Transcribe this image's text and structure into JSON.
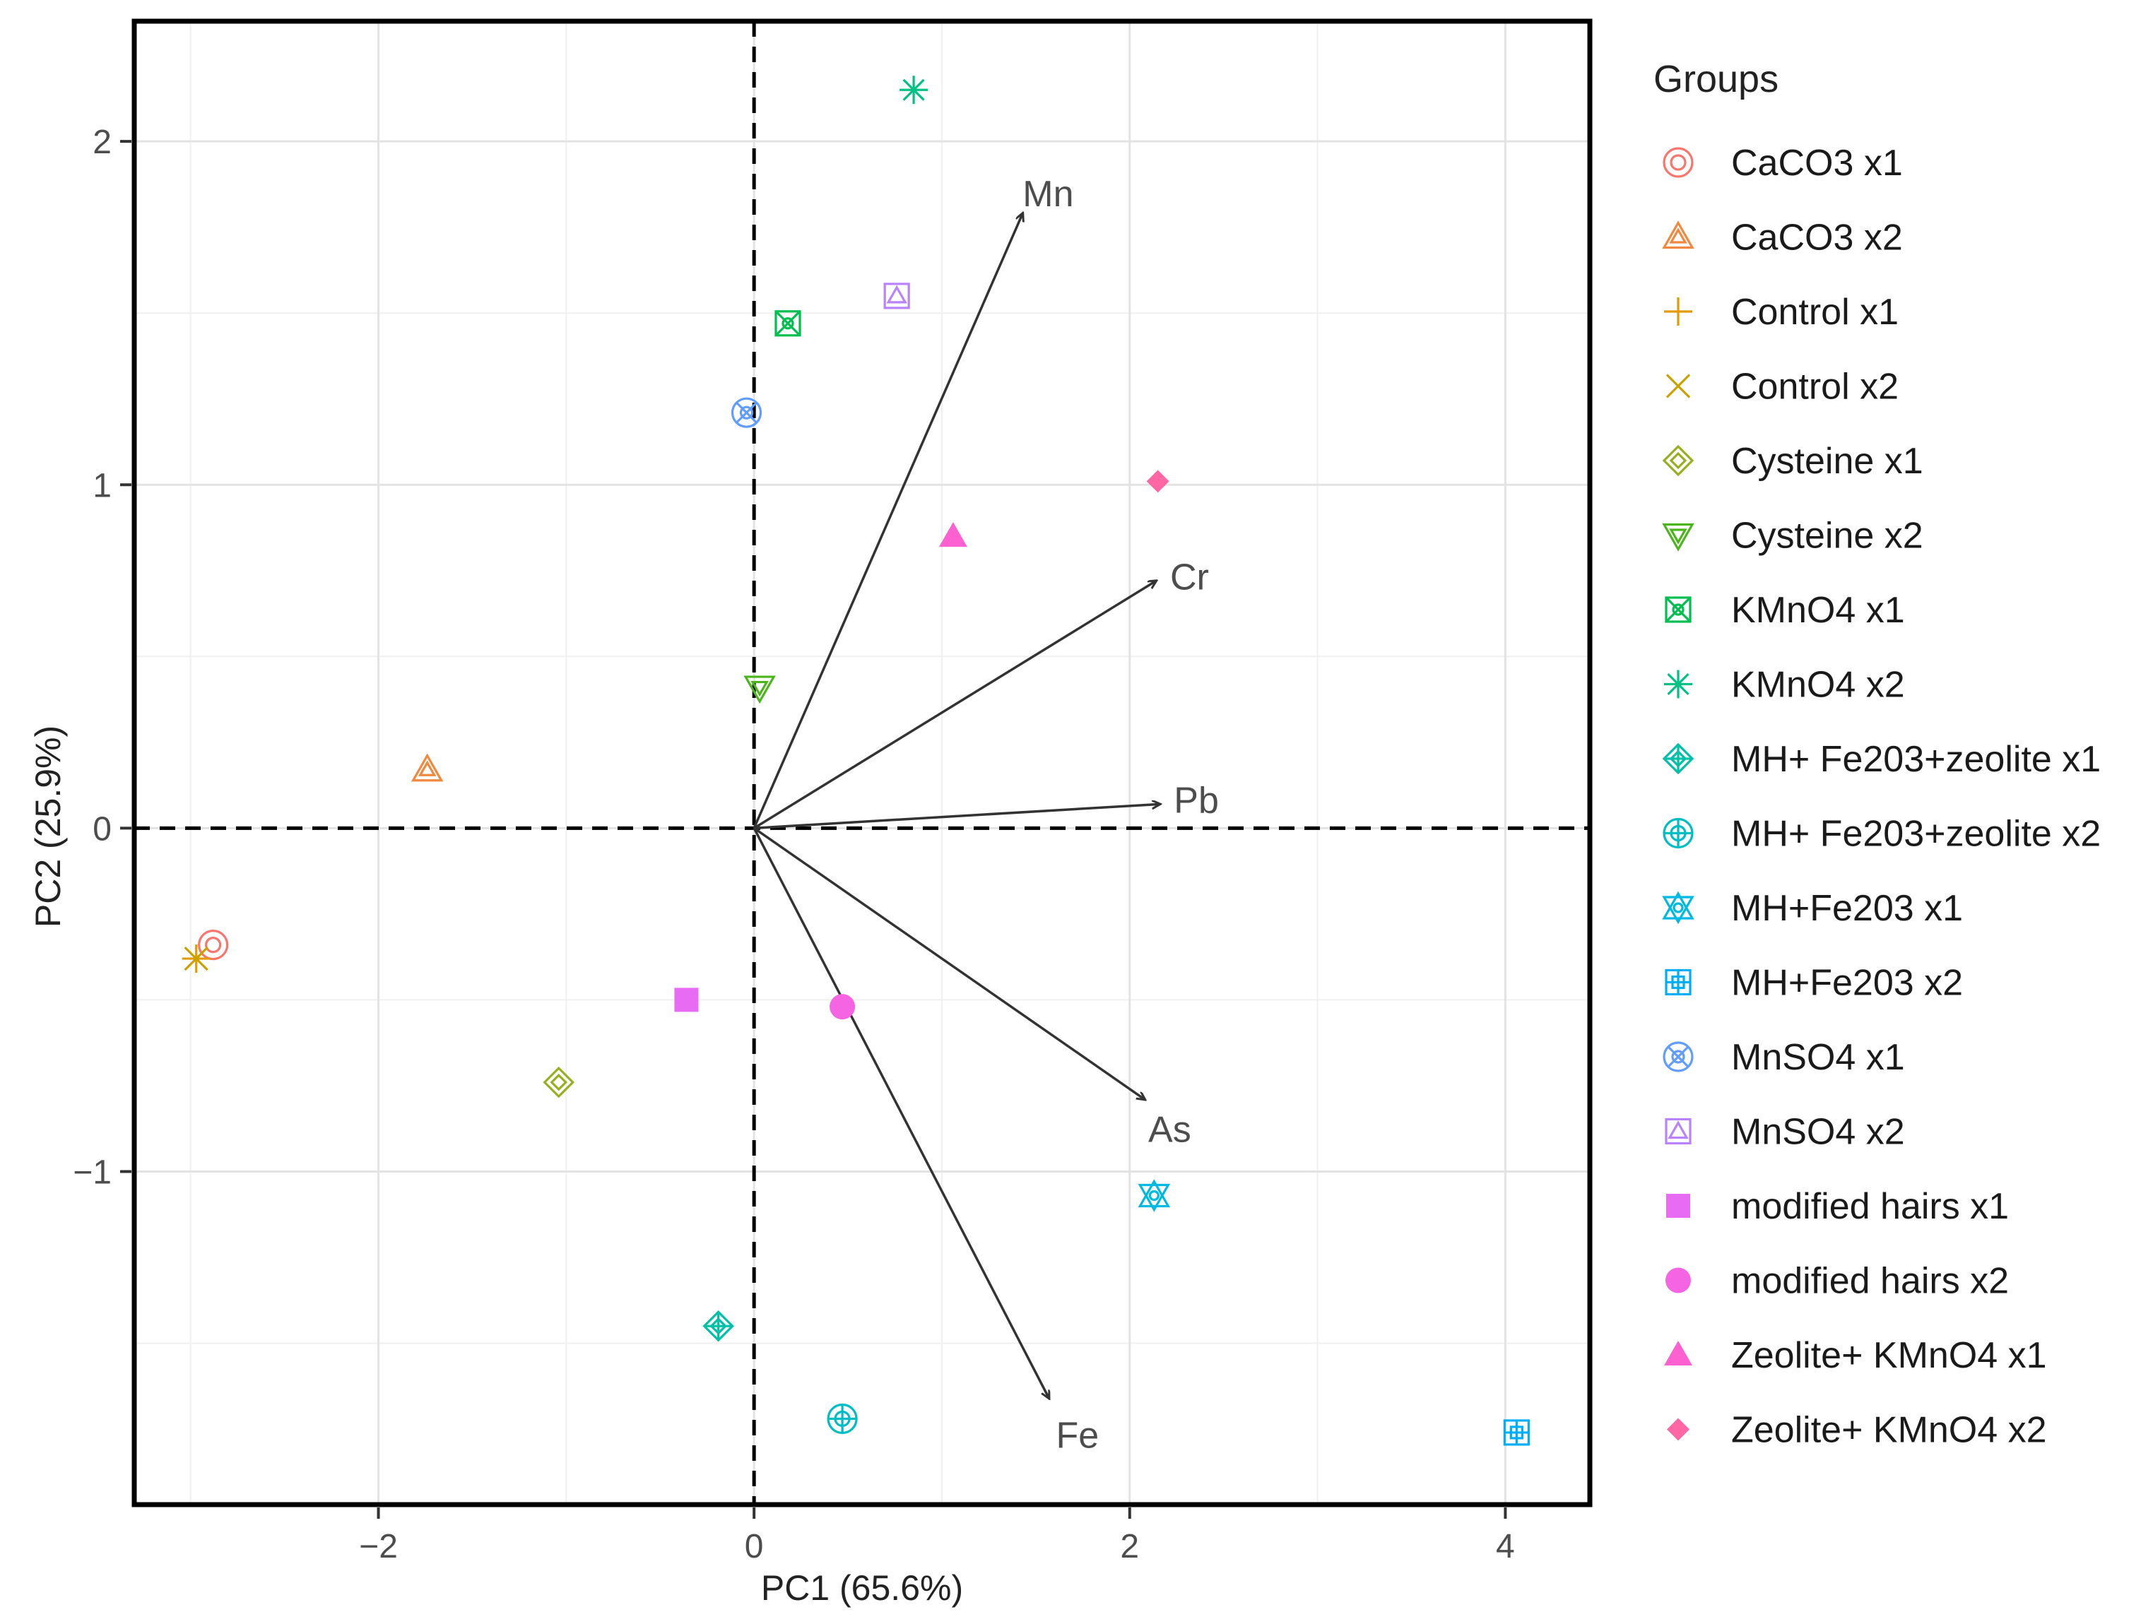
{
  "chart_data": {
    "type": "scatter",
    "subtype": "pca-biplot",
    "xlabel": "PC1 (65.6%)",
    "ylabel": "PC2 (25.9%)",
    "xlim": [
      -3.3,
      4.45
    ],
    "ylim": [
      -1.97,
      2.35
    ],
    "xticks": [
      -2,
      0,
      2,
      4
    ],
    "yticks": [
      -1,
      0,
      1,
      2
    ],
    "tick_labels_x": [
      "−2",
      "0",
      "2",
      "4"
    ],
    "tick_labels_y": [
      "−1",
      "0",
      "1",
      "2"
    ],
    "grid": true,
    "legend": {
      "title": "Groups",
      "position": "right"
    },
    "groups": [
      {
        "name": "CaCO3 x1",
        "color": "#f8766d",
        "shape": "circle-cross",
        "points": [
          [
            -2.88,
            -0.34
          ]
        ]
      },
      {
        "name": "CaCO3 x2",
        "color": "#f0883e",
        "shape": "triangle-open",
        "points": [
          [
            -1.74,
            0.17
          ]
        ]
      },
      {
        "name": "Control x1",
        "color": "#e39b00",
        "shape": "plus",
        "points": [
          [
            -2.97,
            -0.38
          ]
        ]
      },
      {
        "name": "Control x2",
        "color": "#c9a200",
        "shape": "cross",
        "points": [
          [
            -2.97,
            -0.38
          ]
        ]
      },
      {
        "name": "Cysteine x1",
        "color": "#9aaf1f",
        "shape": "diamond-open",
        "points": [
          [
            -1.04,
            -0.74
          ]
        ]
      },
      {
        "name": "Cysteine x2",
        "color": "#4cb51b",
        "shape": "triangle-down-open",
        "points": [
          [
            0.03,
            0.41
          ]
        ]
      },
      {
        "name": "KMnO4 x1",
        "color": "#00be4f",
        "shape": "square-cross",
        "points": [
          [
            0.18,
            1.47
          ]
        ]
      },
      {
        "name": "KMnO4 x2",
        "color": "#00c184",
        "shape": "asterisk",
        "points": [
          [
            0.85,
            2.15
          ]
        ]
      },
      {
        "name": "MH+ Fe203+zeolite x1",
        "color": "#00c0a7",
        "shape": "diamond-plus",
        "points": [
          [
            -0.19,
            -1.45
          ]
        ]
      },
      {
        "name": "MH+ Fe203+zeolite x2",
        "color": "#00bcc4",
        "shape": "circle-plus",
        "points": [
          [
            0.47,
            -1.72
          ]
        ]
      },
      {
        "name": "MH+Fe203 x1",
        "color": "#00b9e3",
        "shape": "star-of-david",
        "points": [
          [
            2.13,
            -1.07
          ]
        ]
      },
      {
        "name": "MH+Fe203 x2",
        "color": "#00aef5",
        "shape": "square-plus",
        "points": [
          [
            4.06,
            -1.76
          ]
        ]
      },
      {
        "name": "MnSO4 x1",
        "color": "#619cff",
        "shape": "circle-x",
        "points": [
          [
            -0.04,
            1.21
          ]
        ]
      },
      {
        "name": "MnSO4 x2",
        "color": "#b983ff",
        "shape": "square-triangle",
        "points": [
          [
            0.76,
            1.55
          ]
        ]
      },
      {
        "name": "modified hairs  x1",
        "color": "#e76bf3",
        "shape": "square-filled",
        "points": [
          [
            -0.36,
            -0.5
          ]
        ]
      },
      {
        "name": "modified hairs x2",
        "color": "#f564e3",
        "shape": "circle-filled",
        "points": [
          [
            0.47,
            -0.52
          ]
        ]
      },
      {
        "name": "Zeolite+ KMnO4 x1",
        "color": "#fd61d1",
        "shape": "triangle-filled",
        "points": [
          [
            1.06,
            0.85
          ]
        ]
      },
      {
        "name": "Zeolite+ KMnO4 x2",
        "color": "#ff67a4",
        "shape": "diamond-filled",
        "points": [
          [
            2.15,
            1.01
          ]
        ]
      }
    ],
    "loadings": [
      {
        "name": "Mn",
        "x": 1.43,
        "y": 1.79
      },
      {
        "name": "Cr",
        "x": 2.14,
        "y": 0.72
      },
      {
        "name": "Pb",
        "x": 2.16,
        "y": 0.07
      },
      {
        "name": "As",
        "x": 2.08,
        "y": -0.79
      },
      {
        "name": "Fe",
        "x": 1.57,
        "y": -1.66
      }
    ]
  }
}
